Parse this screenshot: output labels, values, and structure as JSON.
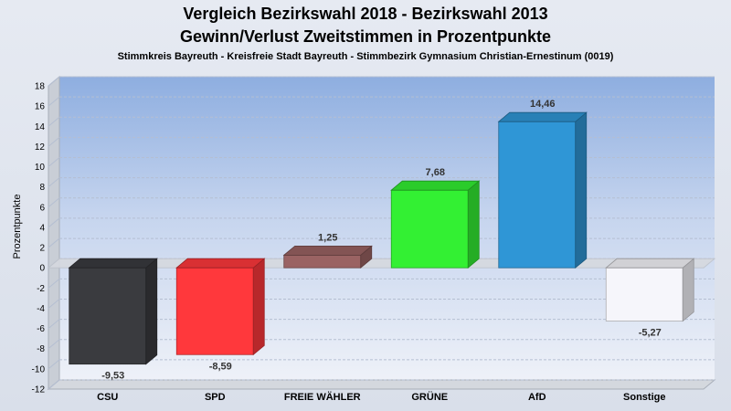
{
  "chart_data": {
    "type": "bar",
    "title": "Vergleich Bezirkswahl 2018 - Bezirkswahl 2013",
    "subtitle": "Gewinn/Verlust Zweitstimmen in Prozentpunkte",
    "caption": "Stimmkreis Bayreuth - Kreisfreie Stadt Bayreuth - Stimmbezirk Gymnasium Christian-Ernestinum (0019)",
    "ylabel": "Prozentpunkte",
    "ylim": [
      -12,
      18
    ],
    "yticks": [
      "18",
      "16",
      "14",
      "12",
      "10",
      "8",
      "6",
      "4",
      "2",
      "0",
      "-2",
      "-4",
      "-6",
      "-8",
      "-10",
      "-12"
    ],
    "categories": [
      "CSU",
      "SPD",
      "FREIE WÄHLER",
      "GRÜNE",
      "AfD",
      "Sonstige"
    ],
    "values": [
      -9.53,
      -8.59,
      1.25,
      7.68,
      14.46,
      -5.27
    ],
    "value_labels": [
      "-9,53",
      "-8,59",
      "1,25",
      "7,68",
      "14,46",
      "-5,27"
    ],
    "colors": [
      "#3a3b3f",
      "#ff383c",
      "#9a6363",
      "#33f033",
      "#2f96d6",
      "#f6f6fb"
    ],
    "grid": true
  }
}
